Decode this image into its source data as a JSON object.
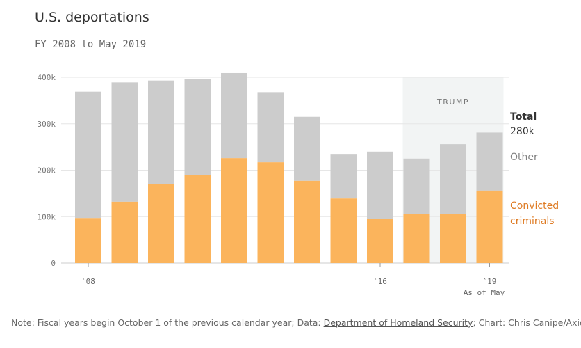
{
  "chart_data": {
    "type": "bar",
    "stacked": true,
    "title": "U.S. deportations",
    "subtitle": "FY 2008 to May 2019",
    "categories": [
      "2008",
      "2009",
      "2010",
      "2011",
      "2012",
      "2013",
      "2014",
      "2015",
      "2016",
      "2017",
      "2018",
      "2019"
    ],
    "series": [
      {
        "name": "Convicted criminals",
        "color": "#fbb45c",
        "values": [
          97,
          132,
          170,
          189,
          226,
          217,
          177,
          139,
          95,
          106,
          106,
          156
        ]
      },
      {
        "name": "Other",
        "color": "#cccccc",
        "values": [
          272,
          257,
          223,
          207,
          183,
          151,
          138,
          96,
          145,
          119,
          150,
          125
        ]
      }
    ],
    "totals": [
      369,
      389,
      393,
      396,
      409,
      368,
      315,
      235,
      240,
      225,
      256,
      281
    ],
    "ylim": [
      0,
      400
    ],
    "yticks": [
      0,
      100,
      200,
      300,
      400
    ],
    "ytick_labels": [
      "0",
      "100k",
      "200k",
      "300k",
      "400k"
    ],
    "xtick_labels": [
      {
        "index": 0,
        "label": "`08"
      },
      {
        "index": 8,
        "label": "`16"
      },
      {
        "index": 11,
        "label": "`19"
      }
    ],
    "x_note": "As of May",
    "annotation": {
      "label": "TRUMP",
      "start_index": 9,
      "end_index": 11,
      "color": "#f2f4f4"
    },
    "legend": {
      "total_label": "Total",
      "total_value": "280k",
      "other_label": "Other",
      "convicted_label_line1": "Convicted",
      "convicted_label_line2": "criminals",
      "convicted_color": "#de7a22",
      "other_color": "#808080",
      "total_color": "#333333"
    }
  },
  "footer": {
    "note_prefix": "Note: Fiscal years begin October 1 of the previous calendar year; Data: ",
    "source_link": "Department of Homeland Security",
    "note_suffix": "; Chart: Chris Canipe/Axios"
  }
}
